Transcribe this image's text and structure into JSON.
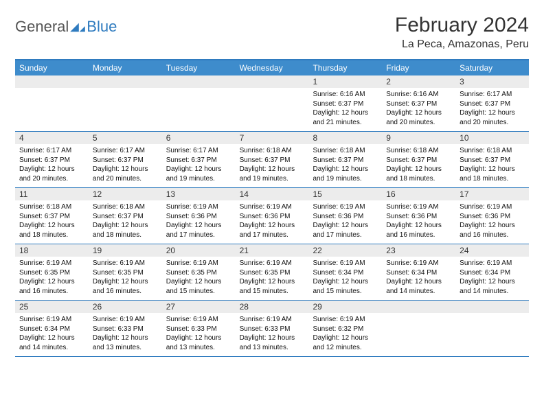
{
  "brand": {
    "name1": "General",
    "name2": "Blue"
  },
  "header": {
    "month_title": "February 2024",
    "location": "La Peca, Amazonas, Peru"
  },
  "colors": {
    "header_bg": "#3e8ccc",
    "rule": "#2f7bbf",
    "daynum_bg": "#ececec",
    "text": "#111111"
  },
  "daynames": [
    "Sunday",
    "Monday",
    "Tuesday",
    "Wednesday",
    "Thursday",
    "Friday",
    "Saturday"
  ],
  "weeks": [
    [
      {
        "blank": true
      },
      {
        "blank": true
      },
      {
        "blank": true
      },
      {
        "blank": true
      },
      {
        "n": "1",
        "sunrise": "6:16 AM",
        "sunset": "6:37 PM",
        "daylight": "12 hours and 21 minutes."
      },
      {
        "n": "2",
        "sunrise": "6:16 AM",
        "sunset": "6:37 PM",
        "daylight": "12 hours and 20 minutes."
      },
      {
        "n": "3",
        "sunrise": "6:17 AM",
        "sunset": "6:37 PM",
        "daylight": "12 hours and 20 minutes."
      }
    ],
    [
      {
        "n": "4",
        "sunrise": "6:17 AM",
        "sunset": "6:37 PM",
        "daylight": "12 hours and 20 minutes."
      },
      {
        "n": "5",
        "sunrise": "6:17 AM",
        "sunset": "6:37 PM",
        "daylight": "12 hours and 20 minutes."
      },
      {
        "n": "6",
        "sunrise": "6:17 AM",
        "sunset": "6:37 PM",
        "daylight": "12 hours and 19 minutes."
      },
      {
        "n": "7",
        "sunrise": "6:18 AM",
        "sunset": "6:37 PM",
        "daylight": "12 hours and 19 minutes."
      },
      {
        "n": "8",
        "sunrise": "6:18 AM",
        "sunset": "6:37 PM",
        "daylight": "12 hours and 19 minutes."
      },
      {
        "n": "9",
        "sunrise": "6:18 AM",
        "sunset": "6:37 PM",
        "daylight": "12 hours and 18 minutes."
      },
      {
        "n": "10",
        "sunrise": "6:18 AM",
        "sunset": "6:37 PM",
        "daylight": "12 hours and 18 minutes."
      }
    ],
    [
      {
        "n": "11",
        "sunrise": "6:18 AM",
        "sunset": "6:37 PM",
        "daylight": "12 hours and 18 minutes."
      },
      {
        "n": "12",
        "sunrise": "6:18 AM",
        "sunset": "6:37 PM",
        "daylight": "12 hours and 18 minutes."
      },
      {
        "n": "13",
        "sunrise": "6:19 AM",
        "sunset": "6:36 PM",
        "daylight": "12 hours and 17 minutes."
      },
      {
        "n": "14",
        "sunrise": "6:19 AM",
        "sunset": "6:36 PM",
        "daylight": "12 hours and 17 minutes."
      },
      {
        "n": "15",
        "sunrise": "6:19 AM",
        "sunset": "6:36 PM",
        "daylight": "12 hours and 17 minutes."
      },
      {
        "n": "16",
        "sunrise": "6:19 AM",
        "sunset": "6:36 PM",
        "daylight": "12 hours and 16 minutes."
      },
      {
        "n": "17",
        "sunrise": "6:19 AM",
        "sunset": "6:36 PM",
        "daylight": "12 hours and 16 minutes."
      }
    ],
    [
      {
        "n": "18",
        "sunrise": "6:19 AM",
        "sunset": "6:35 PM",
        "daylight": "12 hours and 16 minutes."
      },
      {
        "n": "19",
        "sunrise": "6:19 AM",
        "sunset": "6:35 PM",
        "daylight": "12 hours and 16 minutes."
      },
      {
        "n": "20",
        "sunrise": "6:19 AM",
        "sunset": "6:35 PM",
        "daylight": "12 hours and 15 minutes."
      },
      {
        "n": "21",
        "sunrise": "6:19 AM",
        "sunset": "6:35 PM",
        "daylight": "12 hours and 15 minutes."
      },
      {
        "n": "22",
        "sunrise": "6:19 AM",
        "sunset": "6:34 PM",
        "daylight": "12 hours and 15 minutes."
      },
      {
        "n": "23",
        "sunrise": "6:19 AM",
        "sunset": "6:34 PM",
        "daylight": "12 hours and 14 minutes."
      },
      {
        "n": "24",
        "sunrise": "6:19 AM",
        "sunset": "6:34 PM",
        "daylight": "12 hours and 14 minutes."
      }
    ],
    [
      {
        "n": "25",
        "sunrise": "6:19 AM",
        "sunset": "6:34 PM",
        "daylight": "12 hours and 14 minutes."
      },
      {
        "n": "26",
        "sunrise": "6:19 AM",
        "sunset": "6:33 PM",
        "daylight": "12 hours and 13 minutes."
      },
      {
        "n": "27",
        "sunrise": "6:19 AM",
        "sunset": "6:33 PM",
        "daylight": "12 hours and 13 minutes."
      },
      {
        "n": "28",
        "sunrise": "6:19 AM",
        "sunset": "6:33 PM",
        "daylight": "12 hours and 13 minutes."
      },
      {
        "n": "29",
        "sunrise": "6:19 AM",
        "sunset": "6:32 PM",
        "daylight": "12 hours and 12 minutes."
      },
      {
        "blank": true
      },
      {
        "blank": true
      }
    ]
  ],
  "labels": {
    "sunrise_prefix": "Sunrise: ",
    "sunset_prefix": "Sunset: ",
    "daylight_prefix": "Daylight: "
  }
}
